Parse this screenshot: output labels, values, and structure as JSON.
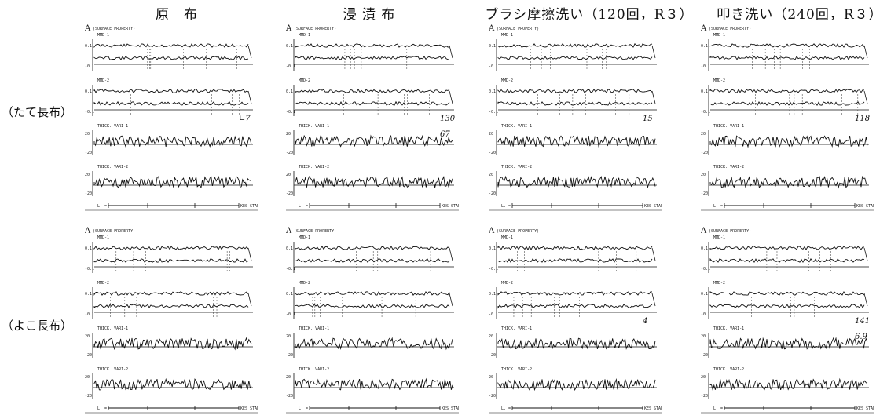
{
  "columns": [
    "原　布",
    "浸 漬 布",
    "ブラシ摩擦洗い（120回，R３）",
    "叩き洗い（240回，R３）"
  ],
  "rows": [
    "（たて長布）",
    "（よこ長布）"
  ],
  "panel_text": {
    "header": "(SURFACE PROPERTY)",
    "mmd1": "MMD-1",
    "mmd2": "MMD-2",
    "thick1": "THICK. VARI-1",
    "thick2": "THICK. VARI-2",
    "footer_l": "L. =",
    "footer_r": "KES STAN",
    "tick_pos": "0.1",
    "tick_neg": "-0.1",
    "tick_tpos": "20",
    "tick_tneg": "-20"
  },
  "corner_marks": {
    "r0c0": "A",
    "r0c1": "A",
    "r0c2": "A",
    "r0c3": "A",
    "r1c0": "A",
    "r1c1": "A",
    "r1c2": "A",
    "r1c3": "A"
  },
  "handwritten": {
    "r0c0": [
      "∟7"
    ],
    "r0c1": [
      "130",
      "67"
    ],
    "r0c2": [
      "15"
    ],
    "r0c3": [
      "118"
    ],
    "r1c0": [],
    "r1c1": [],
    "r1c2": [
      "4"
    ],
    "r1c3": [
      "141",
      "6.9"
    ]
  }
}
